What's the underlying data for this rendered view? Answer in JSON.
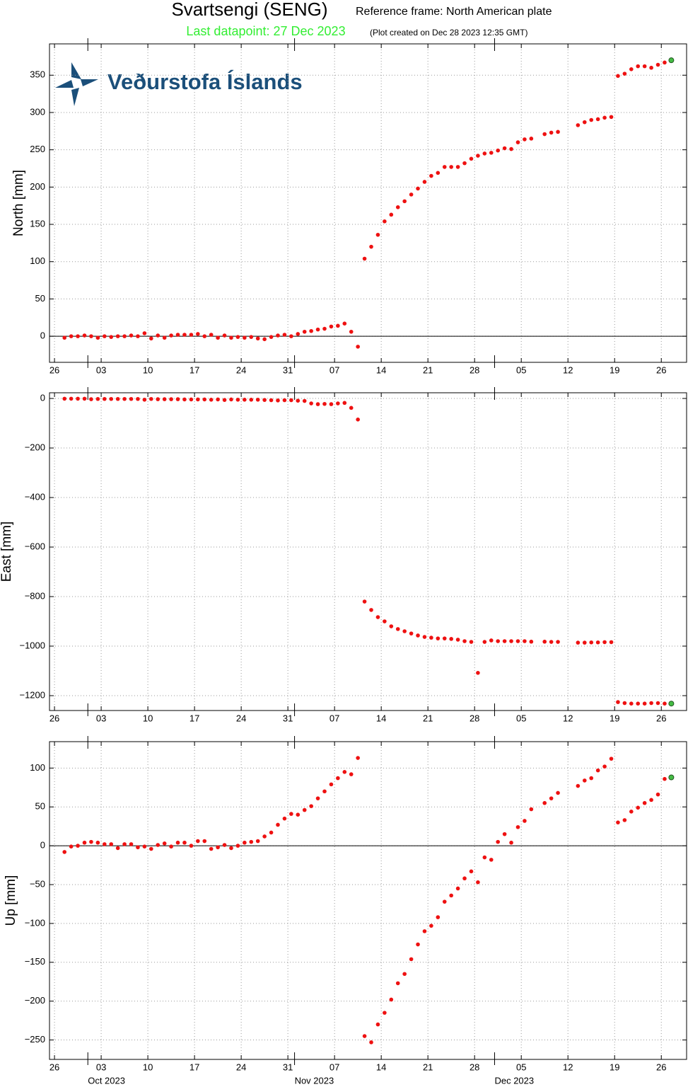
{
  "header": {
    "title": "Svartsengi (SENG)",
    "frame": "Reference frame: North American plate",
    "last": "Last datapoint: 27 Dec 2023",
    "created": "(Plot created on Dec 28 2023 12:35 GMT)",
    "logo": "Veðurstofa Íslands"
  },
  "x": [
    "2023-09-27",
    "2023-09-28",
    "2023-09-29",
    "2023-09-30",
    "2023-10-01",
    "2023-10-02",
    "2023-10-03",
    "2023-10-04",
    "2023-10-05",
    "2023-10-06",
    "2023-10-07",
    "2023-10-08",
    "2023-10-09",
    "2023-10-10",
    "2023-10-11",
    "2023-10-12",
    "2023-10-13",
    "2023-10-14",
    "2023-10-15",
    "2023-10-16",
    "2023-10-17",
    "2023-10-18",
    "2023-10-19",
    "2023-10-20",
    "2023-10-21",
    "2023-10-22",
    "2023-10-23",
    "2023-10-24",
    "2023-10-25",
    "2023-10-26",
    "2023-10-27",
    "2023-10-28",
    "2023-10-29",
    "2023-10-30",
    "2023-10-31",
    "2023-11-01",
    "2023-11-02",
    "2023-11-03",
    "2023-11-04",
    "2023-11-05",
    "2023-11-06",
    "2023-11-07",
    "2023-11-08",
    "2023-11-09",
    "2023-11-10",
    "2023-11-11",
    "2023-11-12",
    "2023-11-13",
    "2023-11-14",
    "2023-11-15",
    "2023-11-16",
    "2023-11-17",
    "2023-11-18",
    "2023-11-19",
    "2023-11-20",
    "2023-11-21",
    "2023-11-22",
    "2023-11-23",
    "2023-11-24",
    "2023-11-25",
    "2023-11-26",
    "2023-11-27",
    "2023-11-28",
    "2023-11-29",
    "2023-11-30",
    "2023-12-01",
    "2023-12-02",
    "2023-12-03",
    "2023-12-04",
    "2023-12-05",
    "2023-12-06",
    "2023-12-07",
    "2023-12-08",
    "2023-12-09",
    "2023-12-10",
    "2023-12-11",
    "2023-12-12",
    "2023-12-13",
    "2023-12-14",
    "2023-12-15",
    "2023-12-16",
    "2023-12-17",
    "2023-12-18",
    "2023-12-19",
    "2023-12-20",
    "2023-12-21",
    "2023-12-22",
    "2023-12-23",
    "2023-12-24",
    "2023-12-25",
    "2023-12-26",
    "2023-12-27"
  ],
  "xlim": [
    "2023-09-25T06:00",
    "2023-12-29T19:00"
  ],
  "xticks": [
    {
      "value": "2023-09-26",
      "label": "26"
    },
    {
      "value": "2023-10-03",
      "label": "03"
    },
    {
      "value": "2023-10-10",
      "label": "10"
    },
    {
      "value": "2023-10-17",
      "label": "17"
    },
    {
      "value": "2023-10-24",
      "label": "24"
    },
    {
      "value": "2023-10-31",
      "label": "31"
    },
    {
      "value": "2023-11-07",
      "label": "07"
    },
    {
      "value": "2023-11-14",
      "label": "14"
    },
    {
      "value": "2023-11-21",
      "label": "21"
    },
    {
      "value": "2023-11-28",
      "label": "28"
    },
    {
      "value": "2023-12-05",
      "label": "05"
    },
    {
      "value": "2023-12-12",
      "label": "12"
    },
    {
      "value": "2023-12-19",
      "label": "19"
    },
    {
      "value": "2023-12-26",
      "label": "26"
    }
  ],
  "month_ticks": [
    {
      "value": "2023-10-01",
      "label": "Oct 2023"
    },
    {
      "value": "2023-11-01",
      "label": "Nov 2023"
    },
    {
      "value": "2023-12-01",
      "label": "Dec 2023"
    }
  ],
  "chart_data": [
    {
      "type": "scatter",
      "ylabel": "North [mm]",
      "color": "#ee1111",
      "last_color": "#44bb44",
      "grid": true,
      "zero_line": true,
      "ylim": [
        -35,
        392
      ],
      "yticks": [
        0,
        50,
        100,
        150,
        200,
        250,
        300,
        350
      ],
      "values": [
        -2,
        0,
        0,
        1,
        0,
        -2,
        0,
        -1,
        0,
        0,
        1,
        0,
        4,
        -3,
        1,
        -2,
        1,
        2,
        2,
        2,
        3,
        0,
        2,
        -2,
        1,
        -2,
        -1,
        -2,
        -1,
        -3,
        -4,
        -1,
        1,
        2,
        0,
        3,
        6,
        7,
        9,
        10,
        13,
        14,
        17,
        6,
        -14,
        104,
        120,
        136,
        154,
        163,
        173,
        181,
        190,
        198,
        207,
        215,
        219,
        227,
        227,
        227,
        232,
        238,
        242,
        245,
        246,
        249,
        252,
        251,
        260,
        264,
        265,
        null,
        271,
        273,
        274,
        null,
        null,
        283,
        287,
        290,
        291,
        293,
        294,
        349,
        352,
        358,
        362,
        362,
        360,
        364,
        367,
        370
      ]
    },
    {
      "type": "scatter",
      "ylabel": "East [mm]",
      "color": "#ee1111",
      "last_color": "#44bb44",
      "grid": true,
      "zero_line": false,
      "ylim": [
        -1260,
        23
      ],
      "yticks": [
        0,
        {
          "value": -200,
          "label": "−200"
        },
        {
          "value": -400,
          "label": "−400"
        },
        {
          "value": -600,
          "label": "−600"
        },
        {
          "value": -800,
          "label": "−800"
        },
        {
          "value": -1000,
          "label": "−1000"
        },
        {
          "value": -1200,
          "label": "−1200"
        }
      ],
      "values": [
        -1,
        -1,
        -1,
        -1,
        -3,
        -2,
        -2,
        -2,
        -2,
        -2,
        -2,
        -2,
        -5,
        -2,
        -3,
        -3,
        -3,
        -3,
        -4,
        -4,
        -4,
        -4,
        -5,
        -4,
        -6,
        -4,
        -5,
        -5,
        -5,
        -5,
        -6,
        -7,
        -8,
        -7,
        -7,
        -9,
        -10,
        -20,
        -23,
        -22,
        -23,
        -20,
        -18,
        -38,
        -85,
        -820,
        -854,
        -883,
        -900,
        -920,
        -931,
        -940,
        -949,
        -957,
        -963,
        -966,
        -969,
        -969,
        -971,
        -974,
        -980,
        -983,
        -1108,
        -983,
        -977,
        -980,
        -980,
        -980,
        -980,
        -980,
        -982,
        null,
        -982,
        -983,
        -983,
        null,
        null,
        -986,
        -986,
        -985,
        -985,
        -984,
        -984,
        -1226,
        -1230,
        -1232,
        -1232,
        -1232,
        -1230,
        -1230,
        -1232,
        -1232
      ]
    },
    {
      "type": "scatter",
      "ylabel": "Up [mm]",
      "color": "#ee1111",
      "last_color": "#44bb44",
      "grid": true,
      "zero_line": true,
      "ylim": [
        -275,
        134
      ],
      "yticks": [
        {
          "value": -250,
          "label": "−250"
        },
        {
          "value": -200,
          "label": "−200"
        },
        {
          "value": -150,
          "label": "−150"
        },
        {
          "value": -100,
          "label": "−100"
        },
        {
          "value": -50,
          "label": "−50"
        },
        0,
        50,
        100
      ],
      "values": [
        -8,
        -1,
        0,
        4,
        5,
        4,
        2,
        2,
        -3,
        2,
        2,
        -2,
        -1,
        -4,
        1,
        3,
        -1,
        4,
        4,
        0,
        6,
        6,
        -4,
        -2,
        1,
        -3,
        0,
        4,
        5,
        6,
        12,
        17,
        27,
        35,
        41,
        40,
        46,
        51,
        61,
        70,
        79,
        87,
        95,
        92,
        113,
        -245,
        -253,
        -230,
        -215,
        -198,
        -177,
        -165,
        -146,
        -127,
        -110,
        -103,
        -92,
        -72,
        -64,
        -55,
        -42,
        -33,
        -47,
        -15,
        -18,
        5,
        15,
        4,
        24,
        32,
        47,
        null,
        55,
        61,
        68,
        null,
        null,
        77,
        84,
        87,
        97,
        102,
        112,
        30,
        33,
        44,
        49,
        55,
        59,
        66,
        86,
        88
      ]
    }
  ]
}
